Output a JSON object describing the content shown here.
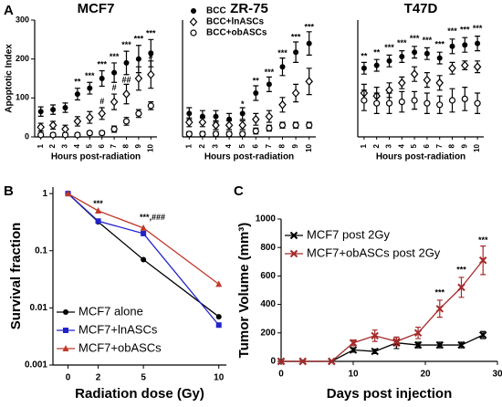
{
  "chart_data": [
    {
      "type": "scatter",
      "panel_label": "A",
      "title": "MCF7",
      "y_label": "Apoptotic Index",
      "x_label": "Hours post-radiation",
      "categories": [
        "1",
        "2",
        "3",
        "4",
        "5",
        "6",
        "7",
        "8",
        "9",
        "10"
      ],
      "ylim": [
        0,
        300
      ],
      "yticks": [
        0,
        100,
        200,
        300
      ],
      "series": [
        {
          "marker": "filled-circle",
          "color": "#000000",
          "values": [
            65,
            70,
            75,
            110,
            125,
            150,
            165,
            190,
            200,
            215
          ],
          "errors": [
            12,
            12,
            12,
            15,
            15,
            20,
            25,
            30,
            35,
            35
          ]
        },
        {
          "marker": "diamond",
          "color": "#000000",
          "values": [
            25,
            30,
            20,
            40,
            50,
            60,
            90,
            110,
            150,
            160
          ],
          "errors": [
            10,
            10,
            10,
            12,
            15,
            15,
            20,
            25,
            30,
            35
          ]
        },
        {
          "marker": "open-circle",
          "color": "#000000",
          "values": [
            5,
            5,
            5,
            5,
            10,
            10,
            20,
            40,
            60,
            80
          ],
          "errors": [
            5,
            5,
            5,
            5,
            5,
            5,
            8,
            10,
            10,
            10
          ]
        }
      ],
      "annotations": [
        {
          "x": "4",
          "y": 140,
          "text": "**"
        },
        {
          "x": "5",
          "y": 155,
          "text": "***"
        },
        {
          "x": "6",
          "y": 185,
          "text": "***"
        },
        {
          "x": "7",
          "y": 205,
          "text": "***"
        },
        {
          "x": "8",
          "y": 235,
          "text": "***"
        },
        {
          "x": "9",
          "y": 250,
          "text": "***"
        },
        {
          "x": "10",
          "y": 265,
          "text": "***"
        },
        {
          "x": "6",
          "y": 90,
          "text": "#"
        },
        {
          "x": "7",
          "y": 125,
          "text": "#"
        },
        {
          "x": "8",
          "y": 145,
          "text": "##"
        },
        {
          "x": "10",
          "y": 205,
          "text": "#"
        }
      ]
    },
    {
      "type": "scatter",
      "title": "ZR-75",
      "x_label": "Hours post-radiation",
      "categories": [
        "1",
        "2",
        "3",
        "4",
        "5",
        "6",
        "7",
        "8",
        "9",
        "10"
      ],
      "ylim": [
        0,
        400
      ],
      "legend": "upper left",
      "series": [
        {
          "name": "BCC",
          "marker": "filled-circle",
          "color": "#000000",
          "values": [
            80,
            70,
            70,
            60,
            80,
            150,
            180,
            240,
            290,
            320
          ],
          "errors": [
            20,
            20,
            20,
            20,
            20,
            25,
            25,
            30,
            35,
            40
          ]
        },
        {
          "name": "BCC+lnASCs",
          "marker": "diamond",
          "color": "#000000",
          "values": [
            50,
            50,
            40,
            40,
            40,
            60,
            70,
            110,
            150,
            190
          ],
          "errors": [
            15,
            15,
            15,
            15,
            15,
            20,
            20,
            25,
            30,
            45
          ]
        },
        {
          "name": "BCC+obASCs",
          "marker": "open-circle",
          "color": "#000000",
          "values": [
            10,
            10,
            10,
            10,
            10,
            20,
            30,
            40,
            40,
            40
          ],
          "errors": [
            8,
            8,
            8,
            8,
            8,
            10,
            10,
            10,
            10,
            10
          ]
        }
      ],
      "annotations": [
        {
          "x": "5",
          "y": 110,
          "text": "*"
        },
        {
          "x": "6",
          "y": 190,
          "text": "**"
        },
        {
          "x": "7",
          "y": 220,
          "text": "***"
        },
        {
          "x": "8",
          "y": 285,
          "text": "***"
        },
        {
          "x": "9",
          "y": 340,
          "text": "***"
        },
        {
          "x": "10",
          "y": 375,
          "text": "***"
        }
      ]
    },
    {
      "type": "scatter",
      "title": "T47D",
      "x_label": "Hours post-radiation",
      "categories": [
        "1",
        "2",
        "3",
        "4",
        "5",
        "6",
        "7",
        "8",
        "9",
        "10"
      ],
      "ylim": [
        0,
        800
      ],
      "series": [
        {
          "marker": "filled-circle",
          "color": "#000000",
          "values": [
            470,
            490,
            520,
            550,
            580,
            570,
            540,
            620,
            630,
            640
          ],
          "errors": [
            40,
            40,
            40,
            40,
            40,
            40,
            40,
            50,
            50,
            50
          ]
        },
        {
          "marker": "diamond",
          "color": "#000000",
          "values": [
            300,
            280,
            320,
            370,
            430,
            390,
            370,
            470,
            490,
            480
          ],
          "errors": [
            60,
            60,
            50,
            40,
            50,
            50,
            50,
            40,
            30,
            40
          ]
        },
        {
          "marker": "open-circle",
          "color": "#000000",
          "values": [
            250,
            230,
            230,
            240,
            250,
            230,
            220,
            250,
            260,
            230
          ],
          "errors": [
            70,
            70,
            70,
            70,
            60,
            70,
            60,
            80,
            80,
            70
          ]
        }
      ],
      "annotations": [
        {
          "x": "1",
          "y": 550,
          "text": "**"
        },
        {
          "x": "2",
          "y": 575,
          "text": "**"
        },
        {
          "x": "3",
          "y": 610,
          "text": "***"
        },
        {
          "x": "4",
          "y": 640,
          "text": "***"
        },
        {
          "x": "5",
          "y": 670,
          "text": "***"
        },
        {
          "x": "6",
          "y": 660,
          "text": "***"
        },
        {
          "x": "7",
          "y": 630,
          "text": "***"
        },
        {
          "x": "8",
          "y": 720,
          "text": "***"
        },
        {
          "x": "9",
          "y": 730,
          "text": "***"
        },
        {
          "x": "10",
          "y": 740,
          "text": "***"
        }
      ]
    },
    {
      "type": "line",
      "panel_label": "B",
      "y_label": "Survival fraction",
      "x_label": "Radiation dose (Gy)",
      "x": [
        0,
        2,
        5,
        10
      ],
      "xlim": [
        -1,
        10.5
      ],
      "xticks": [
        0,
        2,
        5,
        10
      ],
      "ylog": true,
      "ylim": [
        0.001,
        1.3
      ],
      "yticks": [
        {
          "value": 0.001,
          "label": "0.001"
        },
        {
          "value": 0.01,
          "label": "0.01"
        },
        {
          "value": 0.1,
          "label": "0.1"
        },
        {
          "value": 1,
          "label": "1"
        }
      ],
      "legend": "lower left",
      "series": [
        {
          "name": "MCF7 alone",
          "marker": "filled-circle",
          "color": "#000000",
          "values": [
            1,
            0.32,
            0.07,
            0.007
          ]
        },
        {
          "name": "MCF7+lnASCs",
          "marker": "square",
          "color": "#2222cc",
          "values": [
            1,
            0.33,
            0.2,
            0.005
          ]
        },
        {
          "name": "MCF7+obASCs",
          "marker": "triangle",
          "color": "#c0392b",
          "values": [
            1,
            0.5,
            0.25,
            0.026
          ]
        }
      ],
      "annotations": [
        {
          "x": 2,
          "y": 0.65,
          "text": "***"
        },
        {
          "x": 5.6,
          "y": 0.38,
          "text": "***,###"
        }
      ]
    },
    {
      "type": "line",
      "panel_label": "C",
      "y_label": "Tumor Volume (mm³)",
      "x_label": "Days post injection",
      "x": [
        0,
        3,
        7,
        10,
        13,
        16,
        19,
        22,
        25,
        28
      ],
      "xlim": [
        0,
        30
      ],
      "xticks": [
        0,
        10,
        20,
        30
      ],
      "ylim": [
        0,
        1000
      ],
      "yticks": [
        0,
        200,
        400,
        600,
        800,
        1000
      ],
      "legend": "upper left",
      "series": [
        {
          "name": "MCF7 post 2Gy",
          "marker": "x",
          "color": "#000000",
          "values": [
            0,
            0,
            0,
            80,
            70,
            130,
            115,
            115,
            115,
            185
          ],
          "errors": [
            0,
            0,
            0,
            15,
            15,
            40,
            20,
            20,
            20,
            25
          ]
        },
        {
          "name": "MCF7+obASCs post 2Gy",
          "marker": "x",
          "color": "#a52a2a",
          "values": [
            0,
            0,
            0,
            130,
            180,
            140,
            200,
            370,
            520,
            710
          ],
          "errors": [
            0,
            0,
            0,
            20,
            40,
            30,
            40,
            60,
            70,
            100
          ]
        }
      ],
      "annotations": [
        {
          "x": 22,
          "y": 480,
          "text": "***"
        },
        {
          "x": 25,
          "y": 640,
          "text": "***"
        },
        {
          "x": 28,
          "y": 850,
          "text": "***"
        }
      ]
    }
  ]
}
